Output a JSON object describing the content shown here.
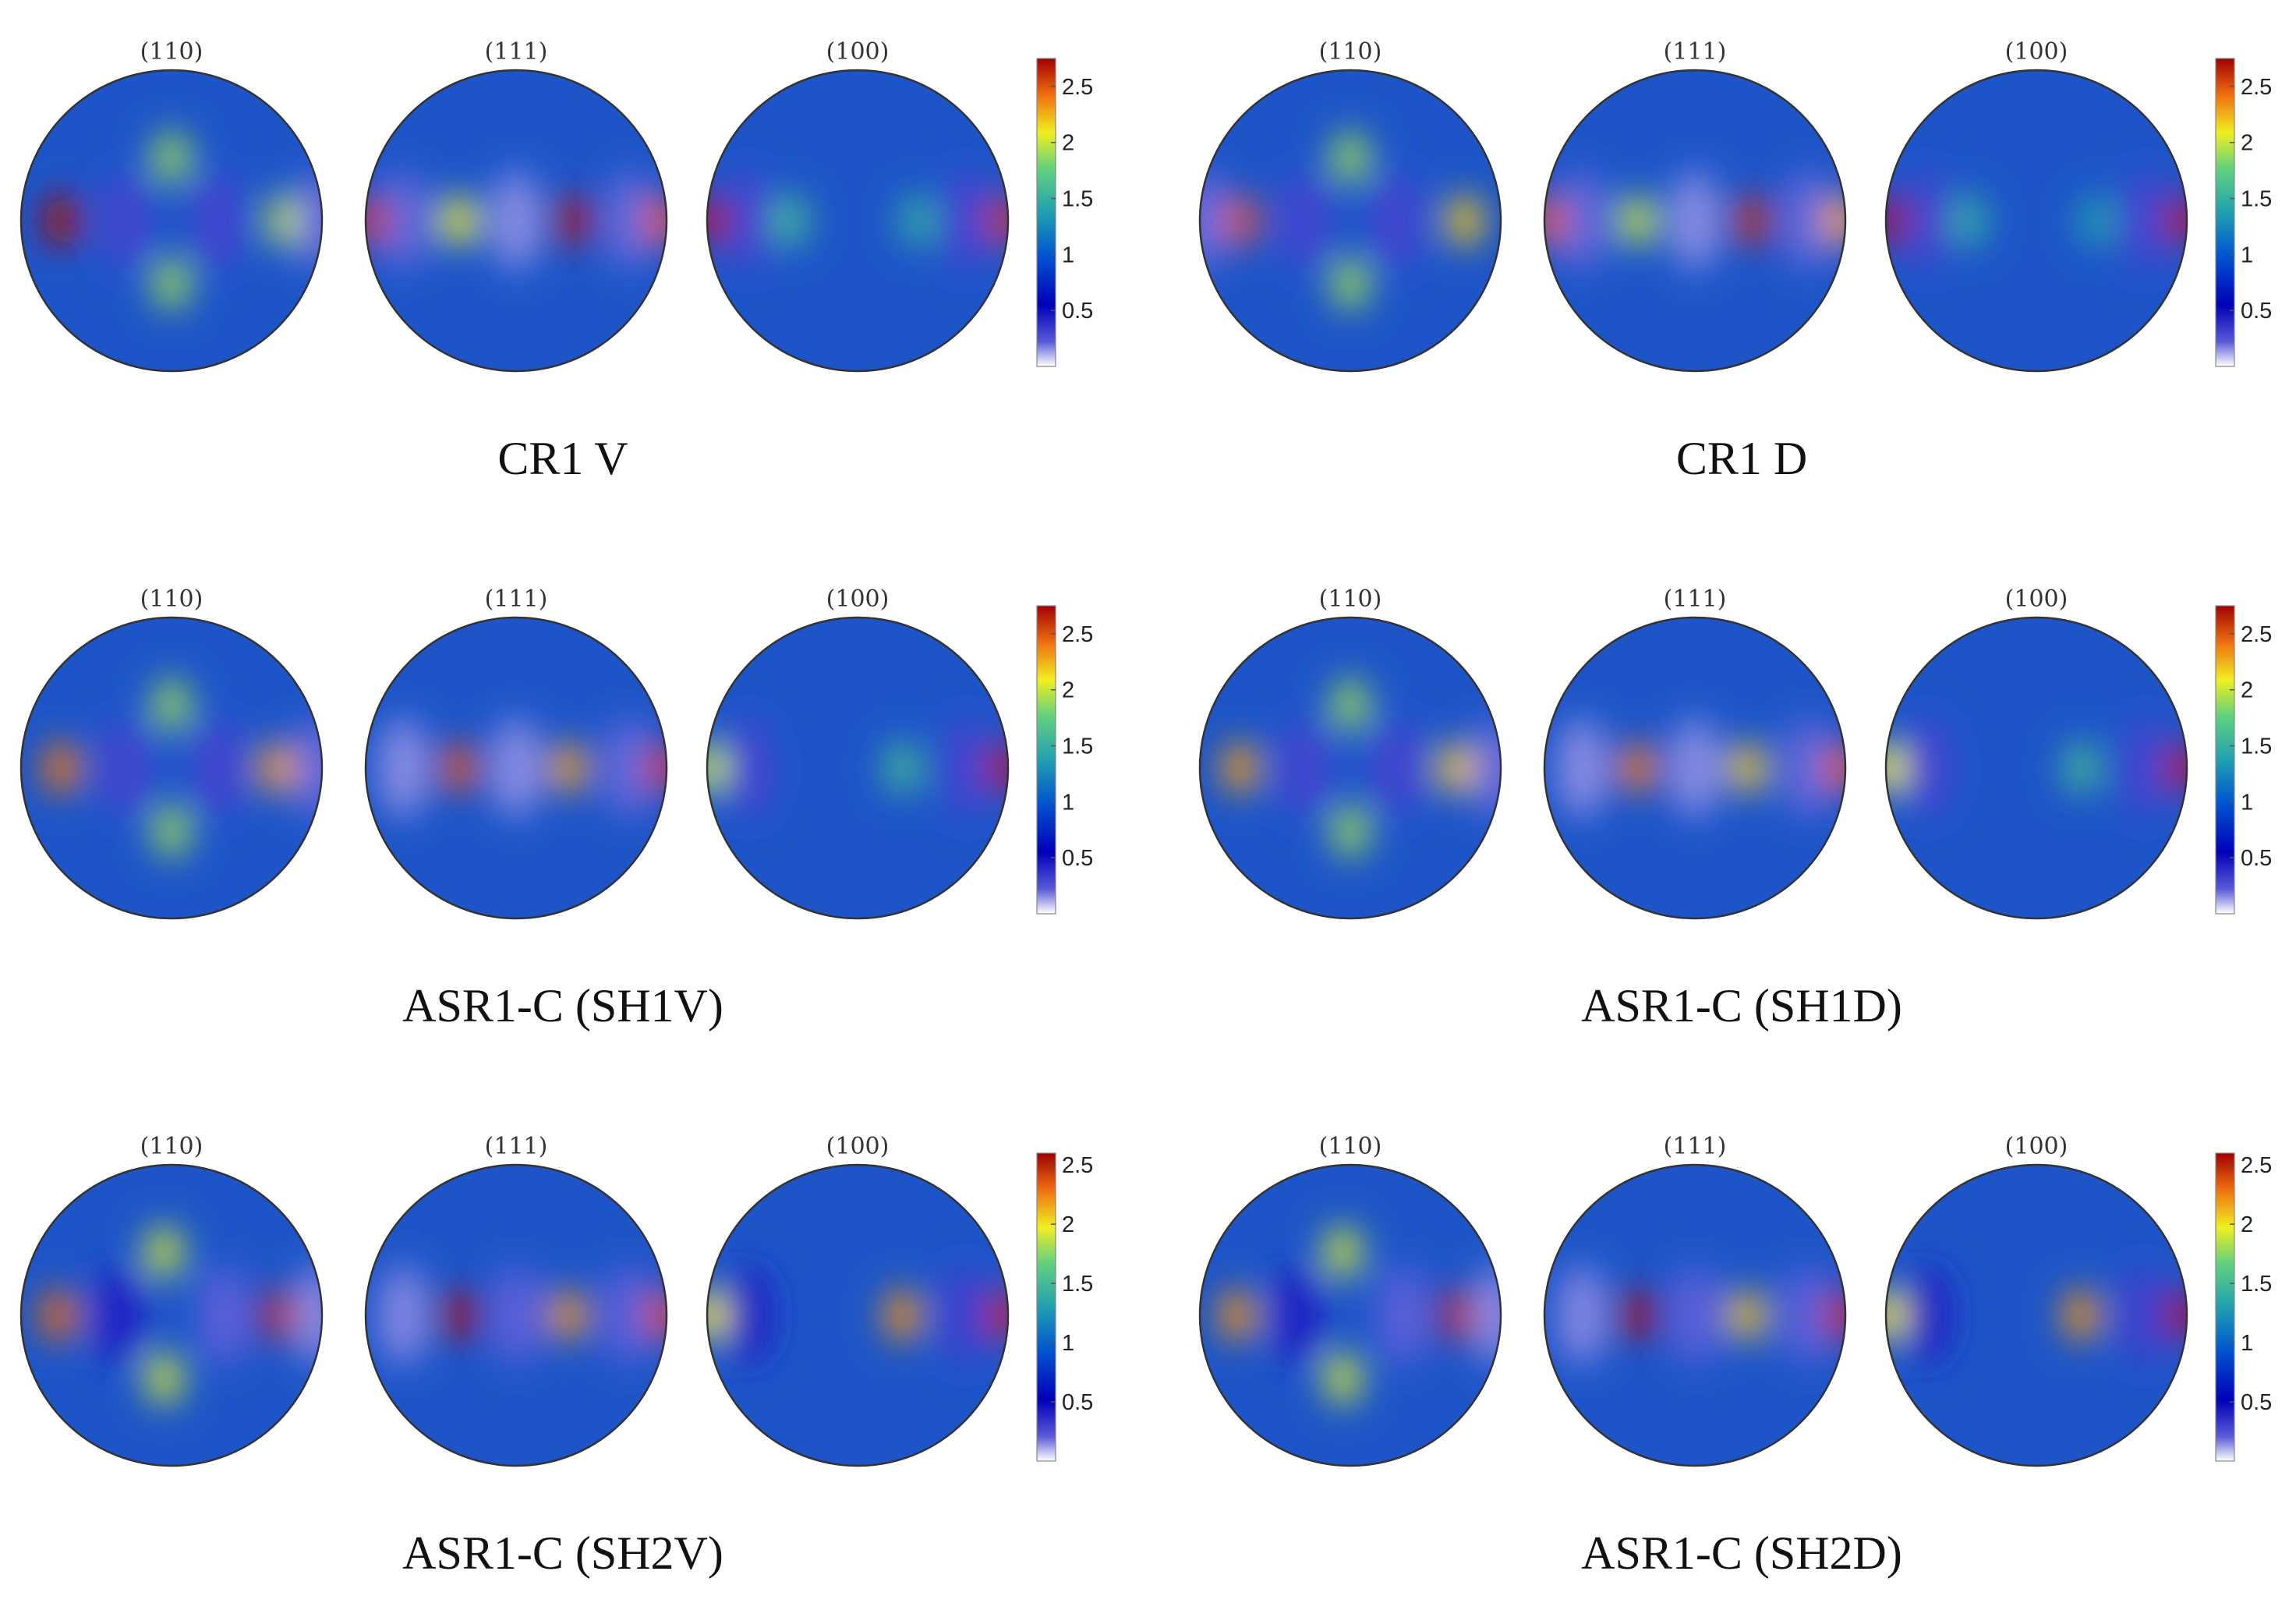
{
  "chart_data": [
    {
      "type": "heatmap",
      "title": "CR1 V",
      "colorbar": {
        "min": 0,
        "max": 2.75,
        "ticks": [
          0.5,
          1,
          1.5,
          2,
          2.5
        ],
        "colormap": "jet-white-low"
      },
      "pole_figures": [
        {
          "label": "(110)",
          "peaks": [
            {
              "u": -0.73,
              "v": 0,
              "value": 2.7
            },
            {
              "u": 0.76,
              "v": 0,
              "value": 2.0
            },
            {
              "u": 0,
              "v": -0.42,
              "value": 1.9
            },
            {
              "u": 0,
              "v": 0.42,
              "value": 1.9
            },
            {
              "u": -0.3,
              "v": 0,
              "value": 0.3
            },
            {
              "u": 0.3,
              "v": 0,
              "value": 0.3
            },
            {
              "u": 0.98,
              "v": 0,
              "value": 0.2
            }
          ]
        },
        {
          "label": "(111)",
          "peaks": [
            {
              "u": -0.75,
              "v": 0,
              "value": 0.2
            },
            {
              "u": 0,
              "v": 0,
              "value": 0.15
            },
            {
              "u": 0.75,
              "v": 0,
              "value": 0.2
            },
            {
              "u": -0.38,
              "v": 0,
              "value": 2.1
            },
            {
              "u": 0.38,
              "v": 0,
              "value": 2.7
            },
            {
              "u": -0.98,
              "v": 0,
              "value": 2.6
            },
            {
              "u": 0.98,
              "v": 0,
              "value": 2.5
            }
          ]
        },
        {
          "label": "(100)",
          "peaks": [
            {
              "u": -0.72,
              "v": 0,
              "value": 0.3
            },
            {
              "u": 0.72,
              "v": 0,
              "value": 0.3
            },
            {
              "u": -0.99,
              "v": 0,
              "value": 2.7
            },
            {
              "u": 0.99,
              "v": 0,
              "value": 2.6
            },
            {
              "u": -0.45,
              "v": 0,
              "value": 1.6
            },
            {
              "u": 0.4,
              "v": 0,
              "value": 1.5
            }
          ]
        }
      ]
    },
    {
      "type": "heatmap",
      "title": "CR1 D",
      "colorbar": {
        "min": 0,
        "max": 2.75,
        "ticks": [
          0.5,
          1,
          1.5,
          2,
          2.5
        ],
        "colormap": "jet-white-low"
      },
      "pole_figures": [
        {
          "label": "(110)",
          "peaks": [
            {
              "u": -0.73,
              "v": 0,
              "value": 2.5
            },
            {
              "u": 0.76,
              "v": 0,
              "value": 2.2
            },
            {
              "u": 0,
              "v": -0.42,
              "value": 1.9
            },
            {
              "u": 0,
              "v": 0.42,
              "value": 1.9
            },
            {
              "u": -0.3,
              "v": 0,
              "value": 0.3
            },
            {
              "u": 0.3,
              "v": 0,
              "value": 0.3
            },
            {
              "u": -0.98,
              "v": 0,
              "value": 0.2
            }
          ]
        },
        {
          "label": "(111)",
          "peaks": [
            {
              "u": -0.75,
              "v": 0,
              "value": 0.2
            },
            {
              "u": 0,
              "v": 0,
              "value": 0.15
            },
            {
              "u": 0.75,
              "v": 0,
              "value": 0.2
            },
            {
              "u": -0.38,
              "v": 0,
              "value": 2.0
            },
            {
              "u": 0.38,
              "v": 0,
              "value": 2.6
            },
            {
              "u": -0.98,
              "v": 0,
              "value": 2.5
            },
            {
              "u": 0.98,
              "v": 0,
              "value": 2.3
            }
          ]
        },
        {
          "label": "(100)",
          "peaks": [
            {
              "u": -0.72,
              "v": 0,
              "value": 0.3
            },
            {
              "u": 0.72,
              "v": 0,
              "value": 0.3
            },
            {
              "u": -0.99,
              "v": 0,
              "value": 2.8
            },
            {
              "u": 0.99,
              "v": 0,
              "value": 2.7
            },
            {
              "u": -0.45,
              "v": 0,
              "value": 1.5
            },
            {
              "u": 0.4,
              "v": 0,
              "value": 1.4
            }
          ]
        }
      ]
    },
    {
      "type": "heatmap",
      "title": "ASR1-C (SH1V)",
      "colorbar": {
        "min": 0,
        "max": 2.75,
        "ticks": [
          0.5,
          1,
          1.5,
          2,
          2.5
        ],
        "colormap": "jet-white-low"
      },
      "pole_figures": [
        {
          "label": "(110)",
          "peaks": [
            {
              "u": -0.73,
              "v": 0,
              "value": 2.4
            },
            {
              "u": 0.7,
              "v": 0,
              "value": 2.3
            },
            {
              "u": 0,
              "v": -0.42,
              "value": 1.9
            },
            {
              "u": 0,
              "v": 0.42,
              "value": 1.9
            },
            {
              "u": -0.3,
              "v": 0,
              "value": 0.3
            },
            {
              "u": 0.3,
              "v": 0,
              "value": 0.3
            },
            {
              "u": 0.97,
              "v": 0,
              "value": 0.2
            }
          ]
        },
        {
          "label": "(111)",
          "peaks": [
            {
              "u": -0.75,
              "v": 0,
              "value": 0.15
            },
            {
              "u": 0,
              "v": 0,
              "value": 0.15
            },
            {
              "u": 0.75,
              "v": 0,
              "value": 0.2
            },
            {
              "u": -0.38,
              "v": 0,
              "value": 2.5
            },
            {
              "u": 0.35,
              "v": 0,
              "value": 2.3
            },
            {
              "u": 0.99,
              "v": 0,
              "value": 2.6
            }
          ]
        },
        {
          "label": "(100)",
          "peaks": [
            {
              "u": -0.72,
              "v": 0,
              "value": 0.3
            },
            {
              "u": 0.72,
              "v": 0,
              "value": 0.3
            },
            {
              "u": 0.99,
              "v": 0,
              "value": 2.7
            },
            {
              "u": -0.99,
              "v": 0,
              "value": 2.0
            },
            {
              "u": 0.3,
              "v": 0,
              "value": 1.6
            }
          ]
        }
      ]
    },
    {
      "type": "heatmap",
      "title": "ASR1-C (SH1D)",
      "colorbar": {
        "min": 0,
        "max": 2.75,
        "ticks": [
          0.5,
          1,
          1.5,
          2,
          2.5
        ],
        "colormap": "jet-white-low"
      },
      "pole_figures": [
        {
          "label": "(110)",
          "peaks": [
            {
              "u": -0.73,
              "v": 0,
              "value": 2.3
            },
            {
              "u": 0.7,
              "v": 0,
              "value": 2.2
            },
            {
              "u": 0,
              "v": -0.42,
              "value": 1.9
            },
            {
              "u": 0,
              "v": 0.42,
              "value": 1.9
            },
            {
              "u": -0.3,
              "v": 0,
              "value": 0.3
            },
            {
              "u": 0.3,
              "v": 0,
              "value": 0.3
            },
            {
              "u": 0.97,
              "v": 0,
              "value": 0.2
            }
          ]
        },
        {
          "label": "(111)",
          "peaks": [
            {
              "u": -0.75,
              "v": 0,
              "value": 0.15
            },
            {
              "u": 0,
              "v": 0,
              "value": 0.15
            },
            {
              "u": 0.75,
              "v": 0,
              "value": 0.2
            },
            {
              "u": -0.38,
              "v": 0,
              "value": 2.4
            },
            {
              "u": 0.35,
              "v": 0,
              "value": 2.2
            },
            {
              "u": 0.99,
              "v": 0,
              "value": 2.5
            }
          ]
        },
        {
          "label": "(100)",
          "peaks": [
            {
              "u": -0.72,
              "v": 0,
              "value": 0.3
            },
            {
              "u": 0.72,
              "v": 0,
              "value": 0.3
            },
            {
              "u": 0.99,
              "v": 0,
              "value": 2.7
            },
            {
              "u": -0.99,
              "v": 0,
              "value": 2.1
            },
            {
              "u": 0.3,
              "v": 0,
              "value": 1.6
            }
          ]
        }
      ]
    },
    {
      "type": "heatmap",
      "title": "ASR1-C (SH2V)",
      "colorbar": {
        "min": 0,
        "max": 2.6,
        "ticks": [
          0.5,
          1,
          1.5,
          2,
          2.5
        ],
        "colormap": "jet-white-low"
      },
      "pole_figures": [
        {
          "label": "(110)",
          "peaks": [
            {
              "u": -0.75,
              "v": 0,
              "value": 2.3
            },
            {
              "u": 0.72,
              "v": 0,
              "value": 2.5
            },
            {
              "u": -0.05,
              "v": -0.42,
              "value": 1.9
            },
            {
              "u": -0.05,
              "v": 0.42,
              "value": 1.9
            },
            {
              "u": -0.35,
              "v": 0,
              "value": 0.4
            },
            {
              "u": 0.35,
              "v": 0,
              "value": 0.2
            },
            {
              "u": 0.97,
              "v": 0,
              "value": 0.15
            }
          ]
        },
        {
          "label": "(111)",
          "peaks": [
            {
              "u": -0.75,
              "v": 0,
              "value": 0.15
            },
            {
              "u": 0,
              "v": 0,
              "value": 0.2
            },
            {
              "u": 0.75,
              "v": 0,
              "value": 0.2
            },
            {
              "u": -0.38,
              "v": 0,
              "value": 2.6
            },
            {
              "u": 0.35,
              "v": 0,
              "value": 2.2
            },
            {
              "u": 0.99,
              "v": 0,
              "value": 2.4
            }
          ]
        },
        {
          "label": "(100)",
          "peaks": [
            {
              "u": -0.72,
              "v": 0,
              "value": 0.4
            },
            {
              "u": 0.72,
              "v": 0,
              "value": 0.3
            },
            {
              "u": 0.99,
              "v": 0,
              "value": 2.5
            },
            {
              "u": -0.99,
              "v": 0,
              "value": 2.0
            },
            {
              "u": 0.3,
              "v": 0,
              "value": 2.2
            }
          ]
        }
      ]
    },
    {
      "type": "heatmap",
      "title": "ASR1-C (SH2D)",
      "colorbar": {
        "min": 0,
        "max": 2.6,
        "ticks": [
          0.5,
          1,
          1.5,
          2,
          2.5
        ],
        "colormap": "jet-white-low"
      },
      "pole_figures": [
        {
          "label": "(110)",
          "peaks": [
            {
              "u": -0.75,
              "v": 0,
              "value": 2.2
            },
            {
              "u": 0.72,
              "v": 0,
              "value": 2.5
            },
            {
              "u": -0.05,
              "v": -0.42,
              "value": 1.9
            },
            {
              "u": -0.05,
              "v": 0.42,
              "value": 1.9
            },
            {
              "u": -0.35,
              "v": 0,
              "value": 0.4
            },
            {
              "u": 0.35,
              "v": 0,
              "value": 0.2
            },
            {
              "u": 0.97,
              "v": 0,
              "value": 0.15
            }
          ]
        },
        {
          "label": "(111)",
          "peaks": [
            {
              "u": -0.75,
              "v": 0,
              "value": 0.15
            },
            {
              "u": 0,
              "v": 0,
              "value": 0.2
            },
            {
              "u": 0.75,
              "v": 0,
              "value": 0.2
            },
            {
              "u": -0.38,
              "v": 0,
              "value": 2.6
            },
            {
              "u": 0.35,
              "v": 0,
              "value": 2.1
            },
            {
              "u": 0.99,
              "v": 0,
              "value": 2.5
            }
          ]
        },
        {
          "label": "(100)",
          "peaks": [
            {
              "u": -0.72,
              "v": 0,
              "value": 0.4
            },
            {
              "u": 0.72,
              "v": 0,
              "value": 0.3
            },
            {
              "u": 0.99,
              "v": 0,
              "value": 2.6
            },
            {
              "u": -0.99,
              "v": 0,
              "value": 2.0
            },
            {
              "u": 0.3,
              "v": 0,
              "value": 2.2
            }
          ]
        }
      ]
    }
  ]
}
